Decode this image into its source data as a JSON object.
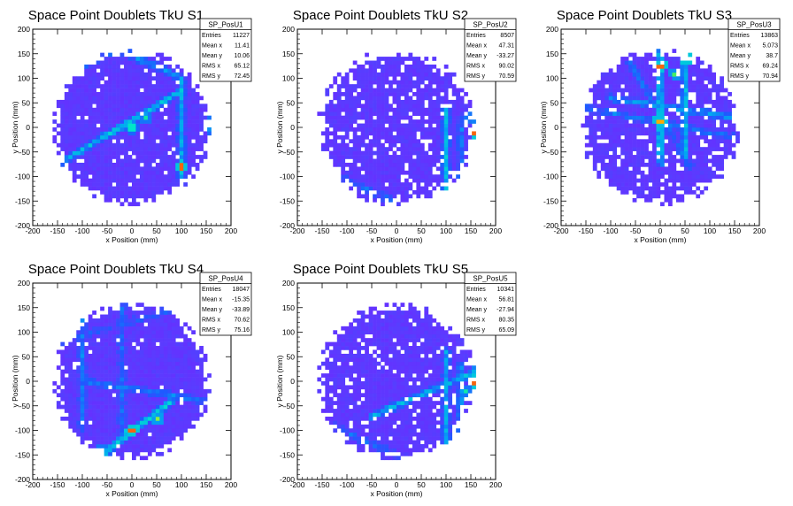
{
  "chart_data": [
    {
      "type": "heatmap",
      "title": "Space Point Doublets TkU S1",
      "xlabel": "x Position (mm)",
      "ylabel": "y Position (mm)",
      "xlim": [
        -200,
        200
      ],
      "ylim": [
        -200,
        200
      ],
      "xticks": [
        "-200",
        "-150",
        "-100",
        "-50",
        "0",
        "50",
        "100",
        "150",
        "200"
      ],
      "yticks": [
        "-200",
        "-150",
        "-100",
        "-50",
        "0",
        "50",
        "100",
        "150",
        "200"
      ],
      "stats": {
        "name": "SP_PosU1",
        "rows": [
          {
            "label": "Entries",
            "value": "11227"
          },
          {
            "label": "Mean x",
            "value": "11.41"
          },
          {
            "label": "Mean y",
            "value": "10.06"
          },
          {
            "label": "RMS x",
            "value": "65.12"
          },
          {
            "label": "RMS y",
            "value": "72.45"
          }
        ]
      },
      "features": {
        "tracks": [
          {
            "from": [
              -150,
              -75
            ],
            "to": [
              100,
              75
            ],
            "level": 0.4
          },
          {
            "from": [
              100,
              -130
            ],
            "to": [
              100,
              100
            ],
            "level": 0.3
          },
          {
            "from": [
              -30,
              160
            ],
            "to": [
              100,
              100
            ],
            "level": 0.28
          },
          {
            "from": [
              -150,
              100
            ],
            "to": [
              -30,
              160
            ],
            "level": 0.22
          },
          {
            "from": [
              160,
              -20
            ],
            "to": [
              160,
              40
            ],
            "level": 0.35
          }
        ],
        "hotspots": [
          {
            "x": 100,
            "y": -80,
            "level": 0.95
          },
          {
            "x": 30,
            "y": 20,
            "level": 0.6
          },
          {
            "x": 0,
            "y": 0,
            "level": 0.55
          }
        ],
        "empty_fraction": 0.05,
        "seed": 11
      }
    },
    {
      "type": "heatmap",
      "title": "Space Point Doublets TkU S2",
      "xlabel": "x Position (mm)",
      "ylabel": "y Position (mm)",
      "xlim": [
        -200,
        200
      ],
      "ylim": [
        -200,
        200
      ],
      "xticks": [
        "-200",
        "-150",
        "-100",
        "-50",
        "0",
        "50",
        "100",
        "150",
        "200"
      ],
      "yticks": [
        "-200",
        "-150",
        "-100",
        "-50",
        "0",
        "50",
        "100",
        "150",
        "200"
      ],
      "stats": {
        "name": "SP_PosU2",
        "rows": [
          {
            "label": "Entries",
            "value": "8507"
          },
          {
            "label": "Mean x",
            "value": "47.31"
          },
          {
            "label": "Mean y",
            "value": "-33.27"
          },
          {
            "label": "RMS x",
            "value": "90.02"
          },
          {
            "label": "RMS y",
            "value": "70.59"
          }
        ]
      },
      "features": {
        "tracks": [
          {
            "from": [
              100,
              -130
            ],
            "to": [
              100,
              40
            ],
            "level": 0.35
          },
          {
            "from": [
              160,
              -120
            ],
            "to": [
              160,
              40
            ],
            "level": 0.45
          },
          {
            "from": [
              130,
              -140
            ],
            "to": [
              130,
              20
            ],
            "level": 0.25
          },
          {
            "from": [
              -120,
              -100
            ],
            "to": [
              0,
              -150
            ],
            "level": 0.2
          }
        ],
        "hotspots": [
          {
            "x": 160,
            "y": -10,
            "level": 0.95
          },
          {
            "x": 150,
            "y": 20,
            "level": 0.6
          }
        ],
        "empty_fraction": 0.12,
        "seed": 23
      }
    },
    {
      "type": "heatmap",
      "title": "Space Point Doublets TkU S3",
      "xlabel": "x Position (mm)",
      "ylabel": "y Position (mm)",
      "xlim": [
        -200,
        200
      ],
      "ylim": [
        -200,
        200
      ],
      "xticks": [
        "-200",
        "-150",
        "-100",
        "-50",
        "0",
        "50",
        "100",
        "150",
        "200"
      ],
      "yticks": [
        "-200",
        "-150",
        "-100",
        "-50",
        "0",
        "50",
        "100",
        "150",
        "200"
      ],
      "stats": {
        "name": "SP_PosU3",
        "rows": [
          {
            "label": "Entries",
            "value": "13863"
          },
          {
            "label": "Mean x",
            "value": "5.073"
          },
          {
            "label": "Mean y",
            "value": "38.7"
          },
          {
            "label": "RMS x",
            "value": "69.24"
          },
          {
            "label": "RMS y",
            "value": "70.94"
          }
        ]
      },
      "features": {
        "tracks": [
          {
            "from": [
              0,
              160
            ],
            "to": [
              0,
              -70
            ],
            "level": 0.45
          },
          {
            "from": [
              50,
              160
            ],
            "to": [
              50,
              -60
            ],
            "level": 0.4
          },
          {
            "from": [
              -100,
              60
            ],
            "to": [
              150,
              20
            ],
            "level": 0.3
          },
          {
            "from": [
              -150,
              40
            ],
            "to": [
              150,
              -20
            ],
            "level": 0.22
          },
          {
            "from": [
              -60,
              130
            ],
            "to": [
              60,
              -80
            ],
            "level": 0.2
          }
        ],
        "hotspots": [
          {
            "x": 0,
            "y": 125,
            "level": 0.95
          },
          {
            "x": 55,
            "y": 140,
            "level": 0.95
          },
          {
            "x": 0,
            "y": 15,
            "level": 0.9
          },
          {
            "x": 30,
            "y": 110,
            "level": 0.7
          }
        ],
        "empty_fraction": 0.1,
        "seed": 37
      }
    },
    {
      "type": "heatmap",
      "title": "Space Point Doublets TkU S4",
      "xlabel": "x Position (mm)",
      "ylabel": "y Position (mm)",
      "xlim": [
        -200,
        200
      ],
      "ylim": [
        -200,
        200
      ],
      "xticks": [
        "-200",
        "-150",
        "-100",
        "-50",
        "0",
        "50",
        "100",
        "150",
        "200"
      ],
      "yticks": [
        "-200",
        "-150",
        "-100",
        "-50",
        "0",
        "50",
        "100",
        "150",
        "200"
      ],
      "stats": {
        "name": "SP_PosU4",
        "rows": [
          {
            "label": "Entries",
            "value": "18047"
          },
          {
            "label": "Mean x",
            "value": "-15.35"
          },
          {
            "label": "Mean y",
            "value": "-33.89"
          },
          {
            "label": "RMS x",
            "value": "70.62"
          },
          {
            "label": "RMS y",
            "value": "75.16"
          }
        ]
      },
      "features": {
        "tracks": [
          {
            "from": [
              -60,
              -150
            ],
            "to": [
              80,
              -40
            ],
            "level": 0.45
          },
          {
            "from": [
              -100,
              0
            ],
            "to": [
              150,
              -40
            ],
            "level": 0.25
          },
          {
            "from": [
              -100,
              140
            ],
            "to": [
              -100,
              -100
            ],
            "level": 0.22
          },
          {
            "from": [
              -20,
              160
            ],
            "to": [
              -20,
              -120
            ],
            "level": 0.18
          },
          {
            "from": [
              -150,
              80
            ],
            "to": [
              100,
              150
            ],
            "level": 0.15
          }
        ],
        "hotspots": [
          {
            "x": 0,
            "y": -100,
            "level": 0.95
          },
          {
            "x": 50,
            "y": -75,
            "level": 0.75
          },
          {
            "x": -60,
            "y": -140,
            "level": 0.6
          }
        ],
        "empty_fraction": 0.04,
        "seed": 41
      }
    },
    {
      "type": "heatmap",
      "title": "Space Point Doublets TkU S5",
      "xlabel": "x Position (mm)",
      "ylabel": "y Position (mm)",
      "xlim": [
        -200,
        200
      ],
      "ylim": [
        -200,
        200
      ],
      "xticks": [
        "-200",
        "-150",
        "-100",
        "-50",
        "0",
        "50",
        "100",
        "150",
        "200"
      ],
      "yticks": [
        "-200",
        "-150",
        "-100",
        "-50",
        "0",
        "50",
        "100",
        "150",
        "200"
      ],
      "stats": {
        "name": "SP_PosU5",
        "rows": [
          {
            "label": "Entries",
            "value": "10341"
          },
          {
            "label": "Mean x",
            "value": "56.81"
          },
          {
            "label": "Mean y",
            "value": "-27.94"
          },
          {
            "label": "RMS x",
            "value": "80.35"
          },
          {
            "label": "RMS y",
            "value": "65.09"
          }
        ]
      },
      "features": {
        "tracks": [
          {
            "from": [
              -50,
              -70
            ],
            "to": [
              160,
              20
            ],
            "level": 0.35
          },
          {
            "from": [
              100,
              -130
            ],
            "to": [
              100,
              60
            ],
            "level": 0.3
          },
          {
            "from": [
              160,
              -120
            ],
            "to": [
              160,
              40
            ],
            "level": 0.45
          },
          {
            "from": [
              130,
              -140
            ],
            "to": [
              130,
              30
            ],
            "level": 0.3
          },
          {
            "from": [
              -130,
              -90
            ],
            "to": [
              0,
              -150
            ],
            "level": 0.18
          }
        ],
        "hotspots": [
          {
            "x": 160,
            "y": 0,
            "level": 0.95
          },
          {
            "x": 140,
            "y": -20,
            "level": 0.6
          }
        ],
        "empty_fraction": 0.1,
        "seed": 53
      }
    }
  ]
}
